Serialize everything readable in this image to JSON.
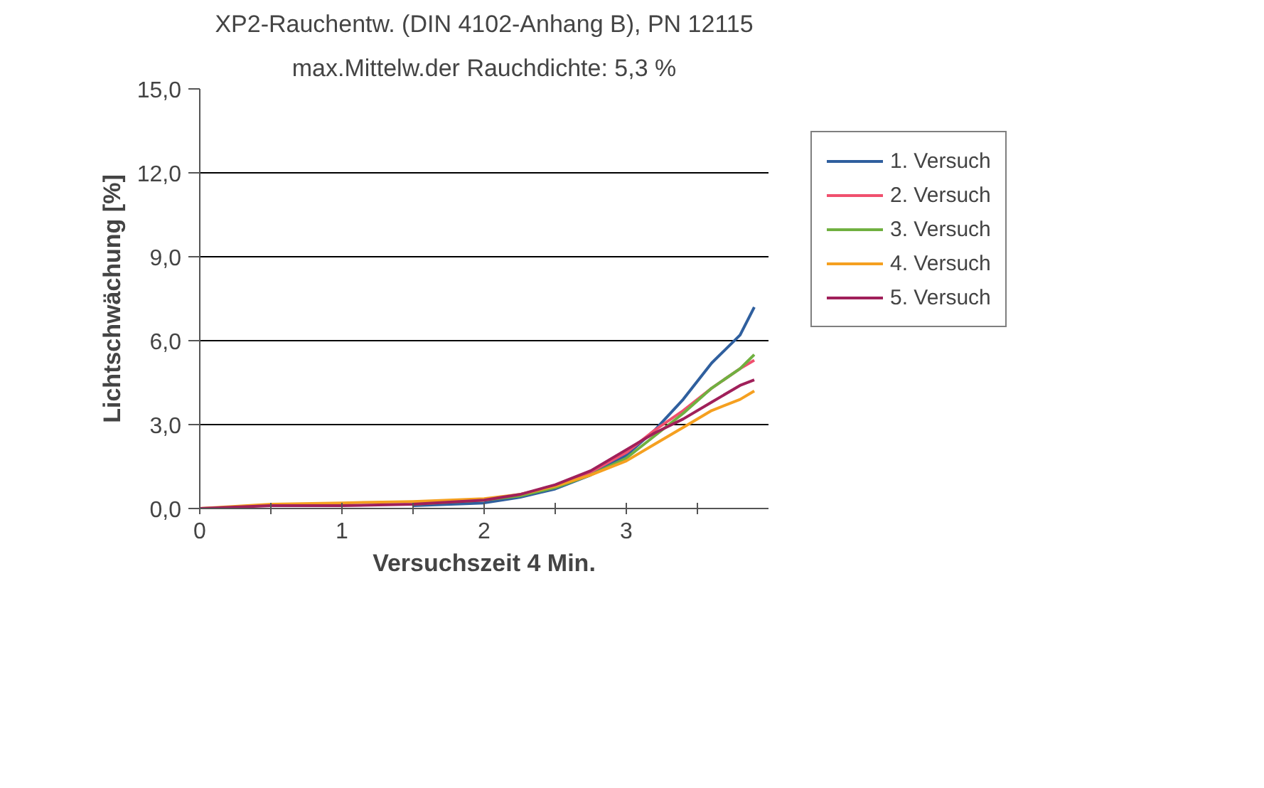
{
  "chart_data": {
    "type": "line",
    "title": "XP2-Rauchentw. (DIN 4102-Anhang B), PN 12115",
    "subtitle": "max.Mittelw.der Rauchdichte: 5,3 %",
    "xlabel": "Versuchszeit 4 Min.",
    "ylabel": "Lichtschwächung [%]",
    "x": [
      0,
      0.5,
      1,
      1.5,
      2,
      2.25,
      2.5,
      2.75,
      3,
      3.2,
      3.4,
      3.6,
      3.8,
      3.9
    ],
    "series": [
      {
        "name": "1. Versuch",
        "color": "#2f5f9e",
        "x": [
          1.5,
          2,
          2.25,
          2.5,
          2.75,
          3,
          3.2,
          3.4,
          3.6,
          3.8,
          3.9
        ],
        "values": [
          0.1,
          0.2,
          0.4,
          0.7,
          1.2,
          1.9,
          2.8,
          3.9,
          5.2,
          6.2,
          7.2
        ]
      },
      {
        "name": "2. Versuch",
        "color": "#f0506e",
        "x": [
          2.25,
          2.5,
          2.75,
          3,
          3.2,
          3.4,
          3.6,
          3.8,
          3.9
        ],
        "values": [
          0.5,
          0.8,
          1.3,
          2.0,
          2.8,
          3.5,
          4.3,
          5.0,
          5.3
        ]
      },
      {
        "name": "3. Versuch",
        "color": "#70b040",
        "x": [
          1.5,
          2,
          2.25,
          2.5,
          2.75,
          3,
          3.2,
          3.4,
          3.6,
          3.8,
          3.9
        ],
        "values": [
          0.15,
          0.3,
          0.45,
          0.75,
          1.2,
          1.8,
          2.6,
          3.4,
          4.3,
          5.0,
          5.5
        ]
      },
      {
        "name": "4. Versuch",
        "color": "#f5a020",
        "values": [
          0,
          0.15,
          0.2,
          0.25,
          0.35,
          0.5,
          0.8,
          1.2,
          1.7,
          2.3,
          2.9,
          3.5,
          3.9,
          4.2
        ]
      },
      {
        "name": "5. Versuch",
        "color": "#a0205a",
        "values": [
          0,
          0.1,
          0.1,
          0.15,
          0.3,
          0.5,
          0.85,
          1.35,
          2.1,
          2.7,
          3.2,
          3.8,
          4.4,
          4.6
        ]
      }
    ],
    "xlim": [
      0,
      4
    ],
    "xticks": [
      0,
      {
        "value": 0.5,
        "label": null
      },
      1,
      {
        "value": 1.5,
        "label": null
      },
      2,
      {
        "value": 2.5,
        "label": null
      },
      3,
      {
        "value": 3.5,
        "label": null
      }
    ],
    "ylim": [
      0,
      15
    ],
    "yticks": [
      {
        "value": 0,
        "label": "0,0"
      },
      {
        "value": 3,
        "label": "3,0"
      },
      {
        "value": 6,
        "label": "6,0"
      },
      {
        "value": 9,
        "label": "9,0"
      },
      {
        "value": 12,
        "label": "12,0"
      },
      {
        "value": 15,
        "label": "15,0"
      }
    ],
    "grid": "y",
    "legend": "right",
    "marker": "none",
    "line_style": "solid"
  }
}
